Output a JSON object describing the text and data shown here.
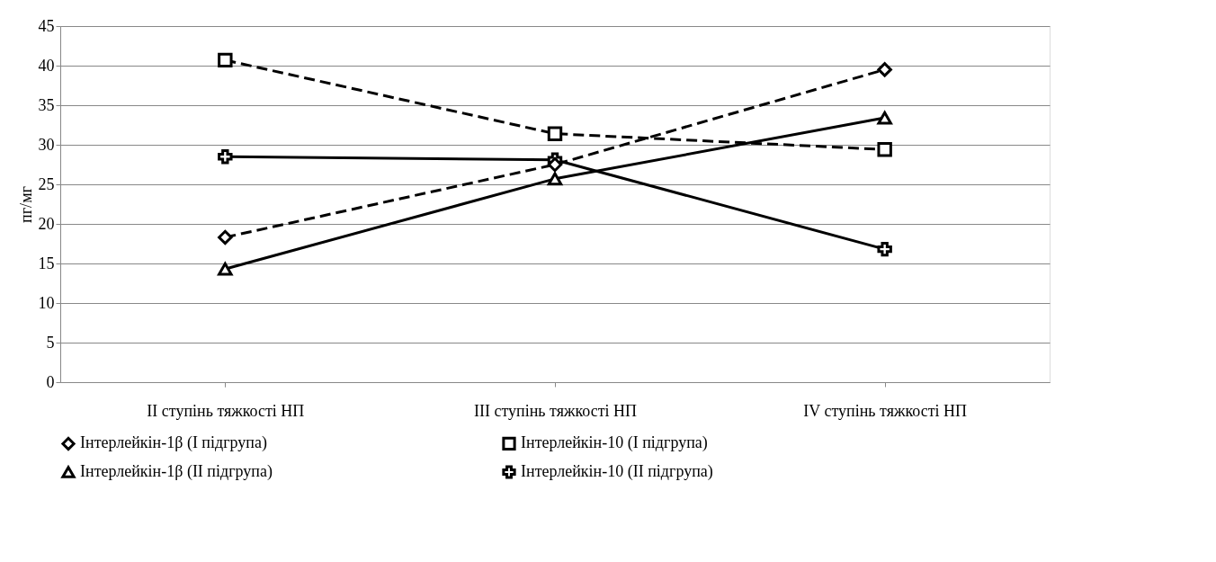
{
  "chart_data": {
    "type": "line",
    "ylabel": "пг/мг",
    "categories": [
      "II ступінь тяжкості НП",
      "III ступінь тяжкості НП",
      "IV ступінь тяжкості НП"
    ],
    "ylim": [
      0,
      45
    ],
    "yticks": [
      0,
      5,
      10,
      15,
      20,
      25,
      30,
      35,
      40,
      45
    ],
    "grid": "y",
    "legend": "bottom",
    "series": [
      {
        "name": "Інтерлейкін-1β (І підгрупа)",
        "color": "#000000",
        "marker": "diamond",
        "line_style": "dashed",
        "values": [
          18.3,
          27.5,
          39.5
        ]
      },
      {
        "name": "Інтерлейкін-10 (І підгрупа)",
        "color": "#000000",
        "marker": "square",
        "line_style": "dashed",
        "values": [
          40.7,
          31.4,
          29.4
        ]
      },
      {
        "name": "Інтерлейкін-1β (ІІ підгрупа)",
        "color": "#000000",
        "marker": "triangle",
        "line_style": "solid",
        "values": [
          14.3,
          25.7,
          33.4
        ]
      },
      {
        "name": "Інтерлейкін-10 (ІІ підгрупа)",
        "color": "#000000",
        "marker": "cross",
        "line_style": "solid",
        "values": [
          28.5,
          28.1,
          16.8
        ]
      }
    ]
  }
}
